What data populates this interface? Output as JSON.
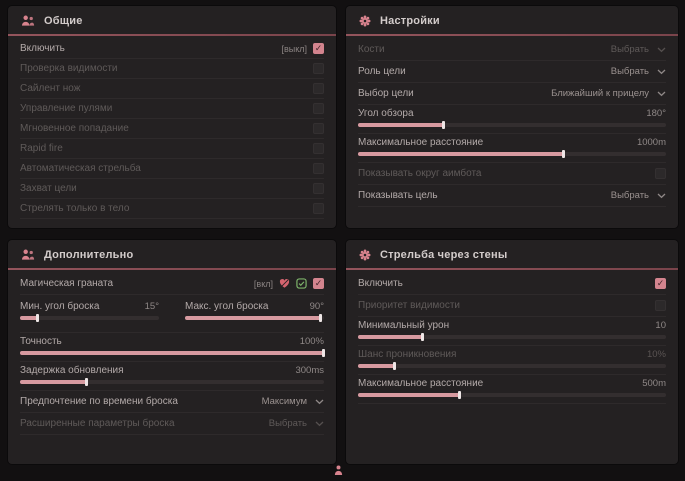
{
  "colors": {
    "page_bg": "#121011",
    "panel_bg": "#242122",
    "accent_pink": "#d79aa0",
    "checkbox_checked": "#d3848e",
    "header_line": "#8e5058",
    "icon_pink": "#d8838e",
    "bind_green": "#7db36a"
  },
  "panels": [
    {
      "title": "Общие",
      "icon": "people-icon",
      "rows": [
        {
          "type": "checkbox",
          "name": "enable",
          "label": "Включить",
          "badge": "[выкл]",
          "checked": true,
          "dim": false
        },
        {
          "type": "checkbox",
          "name": "visibility-check",
          "label": "Проверка видимости",
          "checked": false,
          "dim": true
        },
        {
          "type": "checkbox",
          "name": "silent-knife",
          "label": "Сайлент нож",
          "checked": false,
          "dim": true
        },
        {
          "type": "checkbox",
          "name": "bullet-control",
          "label": "Управление пулями",
          "checked": false,
          "dim": true
        },
        {
          "type": "checkbox",
          "name": "instant-hit",
          "label": "Мгновенное попадание",
          "checked": false,
          "dim": true
        },
        {
          "type": "checkbox",
          "name": "rapid-fire",
          "label": "Rapid fire",
          "checked": false,
          "dim": true
        },
        {
          "type": "checkbox",
          "name": "auto-fire",
          "label": "Автоматическая стрельба",
          "checked": false,
          "dim": true
        },
        {
          "type": "checkbox",
          "name": "target-lock",
          "label": "Захват цели",
          "checked": false,
          "dim": true
        },
        {
          "type": "checkbox",
          "name": "body-only",
          "label": "Стрелять только в тело",
          "checked": false,
          "dim": true
        }
      ]
    },
    {
      "title": "Настройки",
      "icon": "gear-icon",
      "rows": [
        {
          "type": "dropdown",
          "name": "bones",
          "label": "Кости",
          "value": "Выбрать",
          "dim": true
        },
        {
          "type": "dropdown",
          "name": "target-role",
          "label": "Роль цели",
          "value": "Выбрать",
          "dim": false
        },
        {
          "type": "dropdown",
          "name": "target-select",
          "label": "Выбор цели",
          "value": "Ближайший к прицелу",
          "dim": false
        },
        {
          "type": "slider",
          "name": "fov",
          "label": "Угол обзора",
          "value": "180°",
          "fill": 28,
          "dim": false
        },
        {
          "type": "slider",
          "name": "max-distance",
          "label": "Максимальное расстояние",
          "value": "1000m",
          "fill": 67,
          "dim": false
        },
        {
          "type": "checkbox",
          "name": "show-aimbot-circle",
          "label": "Показывать округ аимбота",
          "checked": false,
          "dim": true
        },
        {
          "type": "dropdown",
          "name": "show-target",
          "label": "Показывать цель",
          "value": "Выбрать",
          "dim": false
        }
      ]
    },
    {
      "title": "Дополнительно",
      "icon": "people-icon",
      "rows": [
        {
          "type": "checkbox",
          "name": "magic-grenade",
          "label": "Магическая граната",
          "badge": "[вкл]",
          "icons": [
            "heart-icon",
            "check-icon"
          ],
          "checked": true,
          "dim": false
        },
        {
          "type": "slider_pair",
          "sliders": [
            {
              "name": "min-throw-angle",
              "label": "Мин. угол броска",
              "value": "15°",
              "fill": 13
            },
            {
              "name": "max-throw-angle",
              "label": "Макс. угол броска",
              "value": "90°",
              "fill": 98
            }
          ]
        },
        {
          "type": "slider",
          "name": "accuracy",
          "label": "Точность",
          "value": "100%",
          "fill": 100,
          "dim": false
        },
        {
          "type": "slider",
          "name": "update-delay",
          "label": "Задержка обновления",
          "value": "300ms",
          "fill": 22,
          "dim": false
        },
        {
          "type": "dropdown",
          "name": "throw-time-preference",
          "label": "Предпочтение по времени броска",
          "value": "Максимум",
          "dim": false
        },
        {
          "type": "dropdown",
          "name": "advanced-throw-params",
          "label": "Расширенные параметры броска",
          "value": "Выбрать",
          "dim": true
        }
      ]
    },
    {
      "title": "Стрельба через стены",
      "icon": "gear-icon",
      "rows": [
        {
          "type": "checkbox",
          "name": "enable",
          "label": "Включить",
          "checked": true,
          "dim": false
        },
        {
          "type": "checkbox",
          "name": "visibility-priority",
          "label": "Приоритет видимости",
          "checked": false,
          "dim": true
        },
        {
          "type": "slider",
          "name": "min-damage",
          "label": "Минимальный урон",
          "value": "10",
          "fill": 21,
          "dim": false
        },
        {
          "type": "slider",
          "name": "penetration-chance",
          "label": "Шанс проникновения",
          "value": "10%",
          "fill": 12,
          "dim": true
        },
        {
          "type": "slider",
          "name": "max-distance",
          "label": "Максимальное расстояние",
          "value": "500m",
          "fill": 33,
          "dim": false
        }
      ]
    }
  ]
}
